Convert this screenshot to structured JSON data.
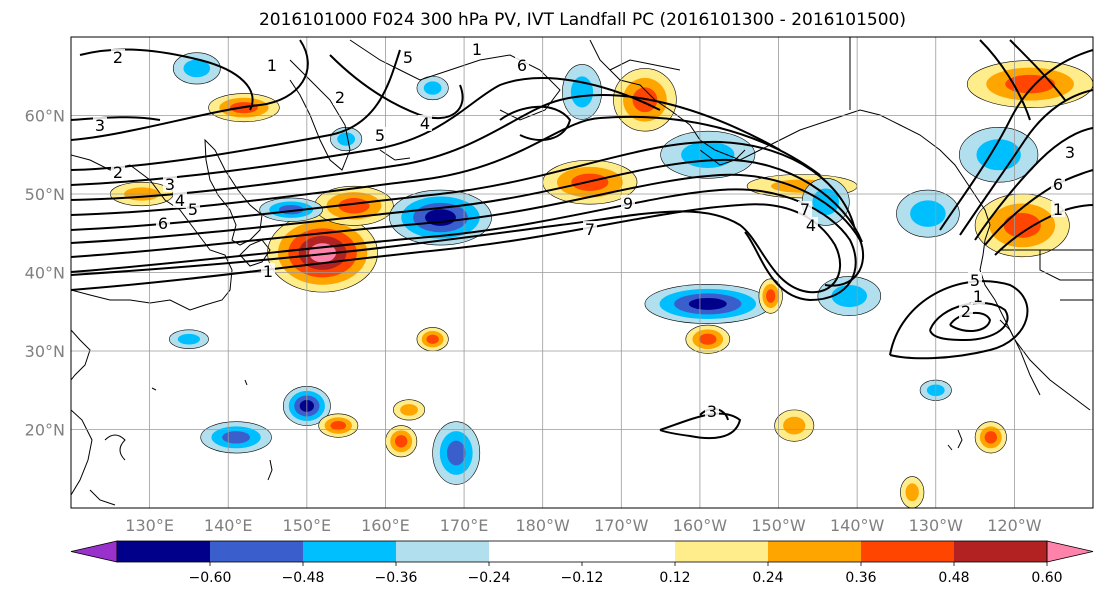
{
  "title": "2016101000 F024 300 hPa PV, IVT Landfall PC (2016101300 - 2016101500)",
  "map": {
    "projection": "PlateCarree",
    "lon_range": [
      120,
      250
    ],
    "lat_range": [
      10,
      70
    ],
    "lat_ticks": [
      {
        "lat": 60,
        "label": "60°N"
      },
      {
        "lat": 50,
        "label": "50°N"
      },
      {
        "lat": 40,
        "label": "40°N"
      },
      {
        "lat": 30,
        "label": "30°N"
      },
      {
        "lat": 20,
        "label": "20°N"
      }
    ],
    "lon_ticks": [
      {
        "lon": 130,
        "label": "130°E"
      },
      {
        "lon": 140,
        "label": "140°E"
      },
      {
        "lon": 150,
        "label": "150°E"
      },
      {
        "lon": 160,
        "label": "160°E"
      },
      {
        "lon": 170,
        "label": "170°E"
      },
      {
        "lon": 180,
        "label": "180°W"
      },
      {
        "lon": 190,
        "label": "170°W"
      },
      {
        "lon": 200,
        "label": "160°W"
      },
      {
        "lon": 210,
        "label": "150°W"
      },
      {
        "lon": 220,
        "label": "140°W"
      },
      {
        "lon": 230,
        "label": "130°W"
      },
      {
        "lon": 240,
        "label": "120°W"
      }
    ],
    "grid": true
  },
  "colorbar": {
    "extend": "both",
    "under_color": "#9932CC",
    "over_color": "#FF82AB",
    "colors": [
      "#00008B",
      "#3A5FCD",
      "#00BFFF",
      "#B2DFEE",
      "#FFFFFF",
      "#FFFFFF",
      "#FFEC8B",
      "#FFA500",
      "#FF4500",
      "#B22222"
    ],
    "labels": [
      "−0.60",
      "−0.48",
      "−0.36",
      "−0.24",
      "−0.12",
      "0.12",
      "0.24",
      "0.36",
      "0.48",
      "0.60"
    ]
  },
  "contour_labels": [
    "2",
    "1",
    "3",
    "2",
    "3",
    "4",
    "5",
    "6",
    "1",
    "2",
    "7",
    "6",
    "5",
    "4",
    "1",
    "5",
    "9",
    "7",
    "4",
    "5",
    "1",
    "2",
    "3",
    "6",
    "1",
    "3"
  ],
  "shading_blobs": [
    {
      "lon": 152,
      "lat": 42.5,
      "rx": 7,
      "ry": 5,
      "levels": [
        "#FFEC8B",
        "#FFA500",
        "#FF4500",
        "#B22222",
        "#FF82AB"
      ]
    },
    {
      "lon": 156,
      "lat": 48.5,
      "rx": 5,
      "ry": 2.5,
      "levels": [
        "#FFEC8B",
        "#FFA500",
        "#FF4500"
      ]
    },
    {
      "lon": 167,
      "lat": 47,
      "rx": 6.5,
      "ry": 3.5,
      "levels": [
        "#B2DFEE",
        "#00BFFF",
        "#3A5FCD",
        "#00008B"
      ]
    },
    {
      "lon": 148,
      "lat": 48,
      "rx": 4,
      "ry": 1.5,
      "levels": [
        "#B2DFEE",
        "#00BFFF",
        "#3A5FCD"
      ]
    },
    {
      "lon": 186,
      "lat": 51.5,
      "rx": 6,
      "ry": 2.8,
      "levels": [
        "#FFEC8B",
        "#FFA500",
        "#FF4500"
      ]
    },
    {
      "lon": 201,
      "lat": 36,
      "rx": 8,
      "ry": 2.5,
      "levels": [
        "#B2DFEE",
        "#00BFFF",
        "#3A5FCD",
        "#00008B"
      ]
    },
    {
      "lon": 201,
      "lat": 31.5,
      "rx": 2.8,
      "ry": 1.8,
      "levels": [
        "#FFEC8B",
        "#FFA500",
        "#FF4500"
      ]
    },
    {
      "lon": 229,
      "lat": 47.5,
      "rx": 4,
      "ry": 3,
      "levels": [
        "#B2DFEE",
        "#00BFFF"
      ]
    },
    {
      "lon": 241,
      "lat": 46,
      "rx": 6,
      "ry": 4,
      "levels": [
        "#FFEC8B",
        "#FFA500",
        "#FF4500"
      ]
    },
    {
      "lon": 238,
      "lat": 55,
      "rx": 5,
      "ry": 3.5,
      "levels": [
        "#B2DFEE",
        "#00BFFF"
      ]
    },
    {
      "lon": 242,
      "lat": 64,
      "rx": 8,
      "ry": 3,
      "levels": [
        "#FFEC8B",
        "#FFA500",
        "#FF4500"
      ]
    },
    {
      "lon": 201,
      "lat": 55,
      "rx": 6,
      "ry": 3,
      "levels": [
        "#B2DFEE",
        "#00BFFF"
      ]
    },
    {
      "lon": 213,
      "lat": 51,
      "rx": 7,
      "ry": 1.5,
      "levels": [
        "#FFEC8B",
        "#FFA500"
      ]
    },
    {
      "lon": 193,
      "lat": 62,
      "rx": 4,
      "ry": 4,
      "levels": [
        "#FFEC8B",
        "#FFA500",
        "#FF4500"
      ]
    },
    {
      "lon": 185,
      "lat": 63,
      "rx": 2.5,
      "ry": 3.5,
      "levels": [
        "#B2DFEE",
        "#00BFFF"
      ]
    },
    {
      "lon": 142,
      "lat": 61,
      "rx": 4.5,
      "ry": 1.8,
      "levels": [
        "#FFEC8B",
        "#FFA500",
        "#FF4500"
      ]
    },
    {
      "lon": 150,
      "lat": 23,
      "rx": 3,
      "ry": 2.5,
      "levels": [
        "#B2DFEE",
        "#00BFFF",
        "#3A5FCD",
        "#00008B"
      ]
    },
    {
      "lon": 141,
      "lat": 19,
      "rx": 4.5,
      "ry": 2,
      "levels": [
        "#B2DFEE",
        "#00BFFF",
        "#3A5FCD"
      ]
    },
    {
      "lon": 169,
      "lat": 17,
      "rx": 3,
      "ry": 4,
      "levels": [
        "#B2DFEE",
        "#00BFFF",
        "#3A5FCD"
      ]
    },
    {
      "lon": 154,
      "lat": 20.5,
      "rx": 2.5,
      "ry": 1.5,
      "levels": [
        "#FFEC8B",
        "#FFA500",
        "#FF4500"
      ]
    },
    {
      "lon": 162,
      "lat": 18.5,
      "rx": 2,
      "ry": 2,
      "levels": [
        "#FFEC8B",
        "#FFA500",
        "#FF4500"
      ]
    },
    {
      "lon": 166,
      "lat": 31.5,
      "rx": 2,
      "ry": 1.5,
      "levels": [
        "#FFEC8B",
        "#FFA500",
        "#FF4500"
      ]
    },
    {
      "lon": 163,
      "lat": 22.5,
      "rx": 2,
      "ry": 1.3,
      "levels": [
        "#FFEC8B",
        "#FFA500"
      ]
    },
    {
      "lon": 212,
      "lat": 20.5,
      "rx": 2.5,
      "ry": 2,
      "levels": [
        "#FFEC8B",
        "#FFA500"
      ]
    },
    {
      "lon": 219,
      "lat": 37,
      "rx": 4,
      "ry": 2.5,
      "levels": [
        "#B2DFEE",
        "#00BFFF"
      ]
    },
    {
      "lon": 216,
      "lat": 49,
      "rx": 3,
      "ry": 3,
      "levels": [
        "#B2DFEE",
        "#00BFFF"
      ]
    },
    {
      "lon": 209,
      "lat": 37,
      "rx": 1.5,
      "ry": 2.2,
      "levels": [
        "#FFEC8B",
        "#FFA500",
        "#FF4500"
      ]
    },
    {
      "lon": 135,
      "lat": 31.5,
      "rx": 2.5,
      "ry": 1.2,
      "levels": [
        "#B2DFEE",
        "#00BFFF"
      ]
    },
    {
      "lon": 129,
      "lat": 50,
      "rx": 4,
      "ry": 1.5,
      "levels": [
        "#FFEC8B",
        "#FFA500"
      ]
    },
    {
      "lon": 136,
      "lat": 66,
      "rx": 3,
      "ry": 2,
      "levels": [
        "#B2DFEE",
        "#00BFFF"
      ]
    },
    {
      "lon": 230,
      "lat": 25,
      "rx": 2,
      "ry": 1.3,
      "levels": [
        "#B2DFEE",
        "#00BFFF"
      ]
    },
    {
      "lon": 237,
      "lat": 19,
      "rx": 2,
      "ry": 2,
      "levels": [
        "#FFEC8B",
        "#FFA500",
        "#FF4500"
      ]
    },
    {
      "lon": 227,
      "lat": 12,
      "rx": 1.5,
      "ry": 2,
      "levels": [
        "#FFEC8B",
        "#FFA500"
      ]
    },
    {
      "lon": 166,
      "lat": 63.5,
      "rx": 2,
      "ry": 1.5,
      "levels": [
        "#B2DFEE",
        "#00BFFF"
      ]
    },
    {
      "lon": 155,
      "lat": 57,
      "rx": 2,
      "ry": 1.5,
      "levels": [
        "#B2DFEE",
        "#00BFFF"
      ]
    }
  ]
}
